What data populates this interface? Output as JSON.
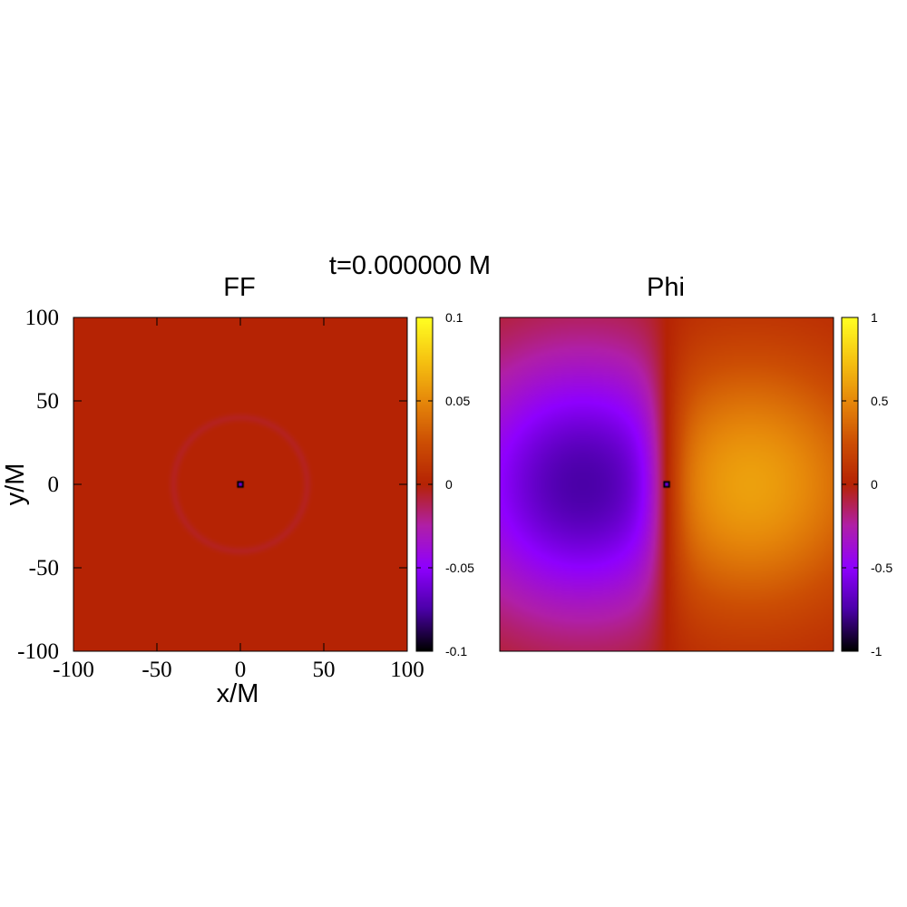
{
  "figure": {
    "title": "t=0.000000 M"
  },
  "colors": {
    "palette_stops": [
      "#000000",
      "#4b00a8",
      "#8f00ff",
      "#b01fa8",
      "#b52304",
      "#cc4e04",
      "#e6880a",
      "#f6c411",
      "#ffff22"
    ],
    "background": "#ffffff",
    "axis": "#000000"
  },
  "chart_data": [
    {
      "type": "heatmap",
      "title": "FF",
      "xlabel": "x/M",
      "ylabel": "y/M",
      "xlim": [
        -100,
        100
      ],
      "ylim": [
        -100,
        100
      ],
      "xticks": [
        -100,
        -50,
        0,
        50,
        100
      ],
      "yticks": [
        -100,
        -50,
        0,
        50,
        100
      ],
      "xtick_labels": [
        "-100",
        "-50",
        "0",
        "50",
        "100"
      ],
      "ytick_labels": [
        "-100",
        "-50",
        "0",
        "50",
        "100"
      ],
      "colorbar": {
        "range": [
          -0.1,
          0.1
        ],
        "ticks": [
          0.1,
          0.05,
          0,
          -0.05,
          -0.1
        ],
        "tick_labels": [
          "0.1",
          "0.05",
          "0",
          "-0.05",
          "-0.1"
        ]
      },
      "field": {
        "background_value": 0.0,
        "ring": {
          "radius": 40,
          "width": 5,
          "value": -0.004
        },
        "center_marker": {
          "x": 0,
          "y": 0,
          "size": 4,
          "value": -0.1
        }
      },
      "grid": false
    },
    {
      "type": "heatmap",
      "title": "Phi",
      "xlim": [
        -100,
        100
      ],
      "ylim": [
        -100,
        100
      ],
      "colorbar": {
        "range": [
          -1,
          1
        ],
        "ticks": [
          1,
          0.5,
          0,
          -0.5,
          -1
        ],
        "tick_labels": [
          "1",
          "0.5",
          "0",
          "-0.5",
          "-1"
        ]
      },
      "field": {
        "min_center": {
          "x": -50,
          "y": 0,
          "value": -0.75
        },
        "max_center": {
          "x": 50,
          "y": 0,
          "value": 0.6
        },
        "center_marker": {
          "x": 0,
          "y": 0,
          "size": 4,
          "value": -1
        }
      },
      "grid": false
    }
  ]
}
